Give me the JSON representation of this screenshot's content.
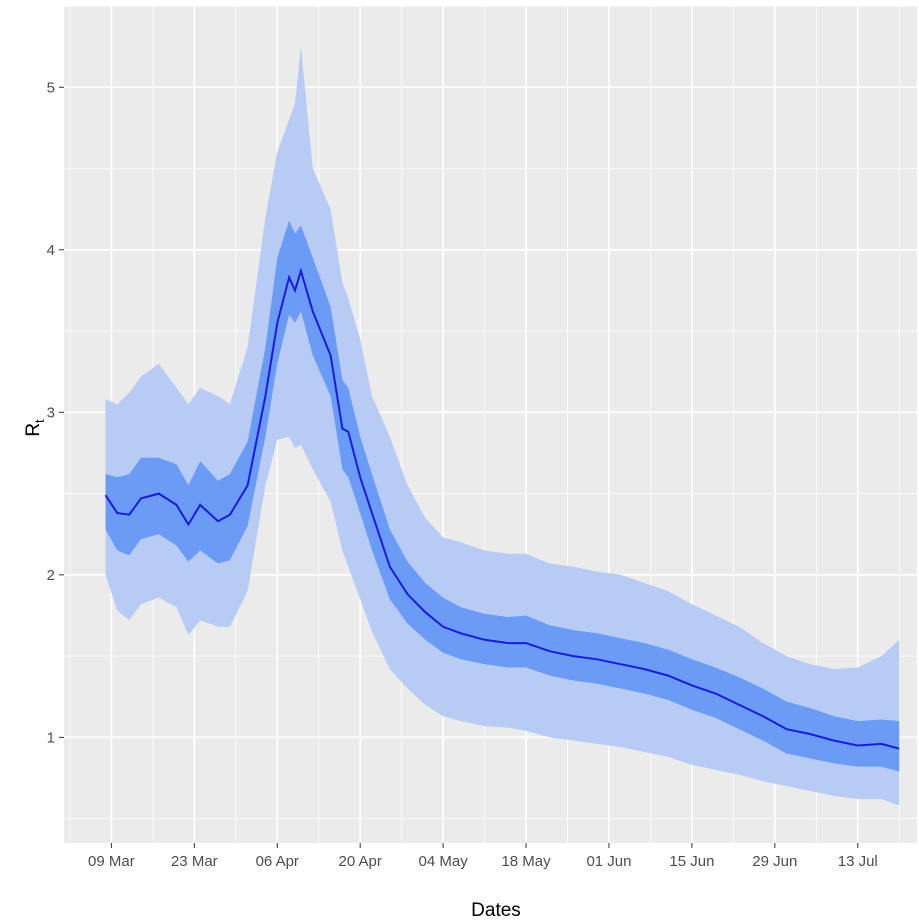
{
  "chart_data": {
    "type": "area",
    "xlabel": "Dates",
    "ylabel": "R",
    "ylabel_subscript": "t",
    "x_tick_labels": [
      "09 Mar",
      "23 Mar",
      "06 Apr",
      "20 Apr",
      "04 May",
      "18 May",
      "01 Jun",
      "15 Jun",
      "29 Jun",
      "13 Jul"
    ],
    "x_tick_dates": [
      "2020-03-09",
      "2020-03-23",
      "2020-04-06",
      "2020-04-20",
      "2020-05-04",
      "2020-05-18",
      "2020-06-01",
      "2020-06-15",
      "2020-06-29",
      "2020-07-13"
    ],
    "y_tick_labels": [
      "1",
      "2",
      "3",
      "4",
      "5"
    ],
    "y_tick_values": [
      1,
      2,
      3,
      4,
      5
    ],
    "xlim": [
      "2020-03-01",
      "2020-07-23"
    ],
    "ylim": [
      0.35,
      5.5
    ],
    "grid": true,
    "legend": "none",
    "colors": {
      "panel": "#ebebeb",
      "grid": "#ffffff",
      "outer_band": "#b7cbf5",
      "inner_band": "#6a9cf6",
      "line": "#1a1ae6"
    },
    "series": [
      {
        "x": [
          "2020-03-08",
          "2020-03-10",
          "2020-03-12",
          "2020-03-14",
          "2020-03-17",
          "2020-03-20",
          "2020-03-22",
          "2020-03-24",
          "2020-03-27",
          "2020-03-29",
          "2020-04-01",
          "2020-04-04",
          "2020-04-06",
          "2020-04-08",
          "2020-04-09",
          "2020-04-10",
          "2020-04-12",
          "2020-04-15",
          "2020-04-17",
          "2020-04-18",
          "2020-04-20",
          "2020-04-22",
          "2020-04-25",
          "2020-04-28",
          "2020-05-01",
          "2020-05-04",
          "2020-05-07",
          "2020-05-11",
          "2020-05-15",
          "2020-05-18",
          "2020-05-22",
          "2020-05-26",
          "2020-05-30",
          "2020-06-03",
          "2020-06-07",
          "2020-06-11",
          "2020-06-15",
          "2020-06-19",
          "2020-06-23",
          "2020-06-27",
          "2020-07-01",
          "2020-07-05",
          "2020-07-09",
          "2020-07-13",
          "2020-07-17",
          "2020-07-20"
        ],
        "mean": [
          2.49,
          2.38,
          2.37,
          2.47,
          2.5,
          2.43,
          2.31,
          2.43,
          2.33,
          2.37,
          2.55,
          3.1,
          3.55,
          3.83,
          3.75,
          3.87,
          3.62,
          3.35,
          2.9,
          2.88,
          2.6,
          2.38,
          2.05,
          1.88,
          1.77,
          1.68,
          1.64,
          1.6,
          1.58,
          1.58,
          1.53,
          1.5,
          1.48,
          1.45,
          1.42,
          1.38,
          1.32,
          1.27,
          1.2,
          1.13,
          1.05,
          1.02,
          0.98,
          0.95,
          0.96,
          0.93
        ],
        "inner_lower": [
          2.28,
          2.15,
          2.12,
          2.22,
          2.25,
          2.18,
          2.08,
          2.15,
          2.07,
          2.09,
          2.3,
          2.85,
          3.3,
          3.6,
          3.55,
          3.62,
          3.35,
          3.1,
          2.65,
          2.6,
          2.38,
          2.15,
          1.85,
          1.7,
          1.6,
          1.52,
          1.48,
          1.45,
          1.43,
          1.43,
          1.38,
          1.35,
          1.33,
          1.3,
          1.27,
          1.23,
          1.17,
          1.12,
          1.05,
          0.98,
          0.9,
          0.87,
          0.84,
          0.82,
          0.82,
          0.79
        ],
        "inner_upper": [
          2.62,
          2.6,
          2.62,
          2.72,
          2.72,
          2.68,
          2.55,
          2.7,
          2.58,
          2.62,
          2.82,
          3.4,
          3.95,
          4.18,
          4.1,
          4.15,
          3.95,
          3.65,
          3.2,
          3.15,
          2.85,
          2.62,
          2.28,
          2.08,
          1.95,
          1.86,
          1.8,
          1.76,
          1.74,
          1.75,
          1.69,
          1.66,
          1.64,
          1.61,
          1.58,
          1.54,
          1.48,
          1.43,
          1.37,
          1.3,
          1.22,
          1.18,
          1.13,
          1.1,
          1.11,
          1.1
        ],
        "outer_lower": [
          2.0,
          1.78,
          1.72,
          1.82,
          1.86,
          1.8,
          1.63,
          1.72,
          1.68,
          1.68,
          1.9,
          2.55,
          2.83,
          2.85,
          2.78,
          2.8,
          2.65,
          2.45,
          2.15,
          2.05,
          1.85,
          1.65,
          1.42,
          1.3,
          1.2,
          1.13,
          1.1,
          1.07,
          1.06,
          1.04,
          1.0,
          0.98,
          0.96,
          0.94,
          0.91,
          0.88,
          0.83,
          0.8,
          0.77,
          0.73,
          0.7,
          0.67,
          0.64,
          0.62,
          0.62,
          0.58
        ],
        "outer_upper": [
          3.08,
          3.05,
          3.12,
          3.22,
          3.3,
          3.15,
          3.05,
          3.15,
          3.1,
          3.05,
          3.4,
          4.2,
          4.6,
          4.8,
          4.9,
          5.25,
          4.5,
          4.25,
          3.8,
          3.7,
          3.45,
          3.1,
          2.85,
          2.55,
          2.35,
          2.23,
          2.2,
          2.15,
          2.13,
          2.13,
          2.07,
          2.05,
          2.02,
          2.0,
          1.95,
          1.9,
          1.82,
          1.75,
          1.68,
          1.58,
          1.5,
          1.45,
          1.42,
          1.43,
          1.5,
          1.6
        ]
      }
    ]
  }
}
